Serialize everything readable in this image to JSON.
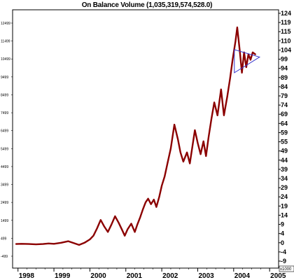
{
  "chart_data": {
    "type": "line",
    "title": "On Balance Volume (1,035,319,574,528.0)",
    "xlabel": "",
    "ylabel": "",
    "x_tick_labels": [
      "1998",
      "1999",
      "2000",
      "2001",
      "2002",
      "2003",
      "2004",
      "2005"
    ],
    "left_axis_ticks": [
      "12499",
      "11499",
      "10499",
      "9499",
      "8499",
      "7499",
      "6499",
      "5499",
      "4499",
      "3499",
      "2499",
      "1499",
      "499",
      "-499"
    ],
    "right_axis_ticks": [
      "124",
      "119",
      "115",
      "110",
      "104",
      "99",
      "94",
      "89",
      "84",
      "79",
      "74",
      "69",
      "64",
      "59",
      "55",
      "49",
      "44",
      "39",
      "34",
      "29",
      "24",
      "19",
      "14",
      "9",
      "4",
      "0",
      "-4",
      "-9"
    ],
    "right_axis_unit": "x1000",
    "ylim": [
      -12.5,
      127
    ],
    "xlim": [
      1997.85,
      2005.25
    ],
    "grid": false,
    "colors": {
      "series": "#8b0000",
      "triangle": "#3333cc",
      "axis": "#000000"
    },
    "series": [
      {
        "x": [
          1997.95,
          1998.1,
          1998.3,
          1998.5,
          1998.7,
          1998.85,
          1999.0,
          1999.2,
          1999.4,
          1999.55,
          1999.7,
          1999.85,
          2000.0,
          2000.1,
          2000.2,
          2000.3,
          2000.4,
          2000.5,
          2000.6,
          2000.7,
          2000.8,
          2000.9,
          2000.97,
          2001.05,
          2001.15,
          2001.25,
          2001.32,
          2001.4,
          2001.47,
          2001.55,
          2001.62,
          2001.7,
          2001.78,
          2001.85,
          2001.93,
          2002.0,
          2002.08,
          2002.17,
          2002.25,
          2002.35,
          2002.45,
          2002.52,
          2002.6,
          2002.7,
          2002.78,
          2002.85,
          2002.92,
          2003.0,
          2003.08,
          2003.16,
          2003.23,
          2003.3,
          2003.38,
          2003.46,
          2003.55,
          2003.65,
          2003.73,
          2003.82,
          2003.9,
          2003.97,
          2004.05,
          2004.1,
          2004.17,
          2004.23,
          2004.29,
          2004.35,
          2004.41,
          2004.47,
          2004.53,
          2004.6
        ],
        "y": [
          0.5,
          0.6,
          0.5,
          0.3,
          0.5,
          0.8,
          0.6,
          1.2,
          2.0,
          1.0,
          0.0,
          1.2,
          3.0,
          5.0,
          9.0,
          13.5,
          10.0,
          7.0,
          11.0,
          15.5,
          12.0,
          8.0,
          5.0,
          8.5,
          11.5,
          7.0,
          11.0,
          15.0,
          19.0,
          23.0,
          25.0,
          22.0,
          24.5,
          20.5,
          26.0,
          32.0,
          37.0,
          45.0,
          52.0,
          65.0,
          57.0,
          50.0,
          45.0,
          50.0,
          44.0,
          53.0,
          62.0,
          55.0,
          49.0,
          56.0,
          48.0,
          58.0,
          68.0,
          77.0,
          70.0,
          84.0,
          70.0,
          80.0,
          90.0,
          100.0,
          110.0,
          117.5,
          105.0,
          93.0,
          104.0,
          96.0,
          103.0,
          100.0,
          104.0,
          103.0
        ]
      }
    ],
    "annotations": [
      {
        "type": "triangle",
        "points": [
          [
            2004.02,
            105.5
          ],
          [
            2004.02,
            93.0
          ],
          [
            2004.72,
            101.5
          ]
        ]
      }
    ]
  }
}
